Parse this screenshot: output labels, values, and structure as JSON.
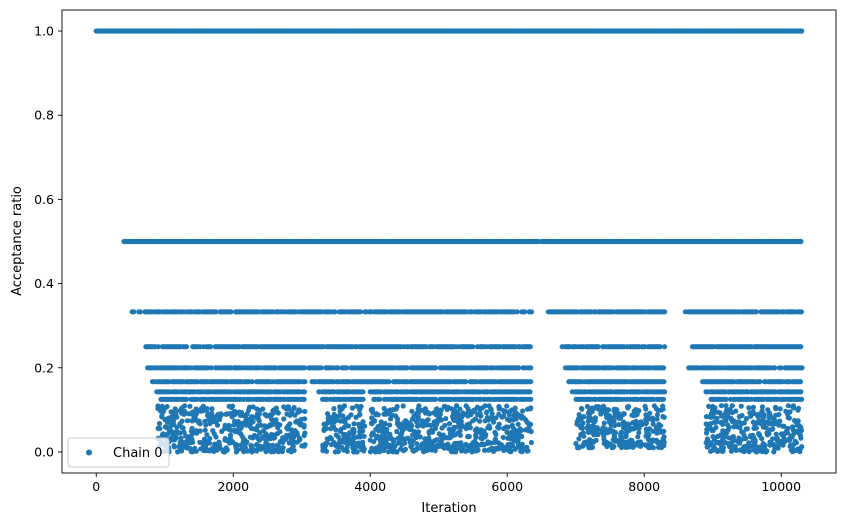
{
  "chart_data": {
    "type": "scatter",
    "title": "",
    "xlabel": "Iteration",
    "ylabel": "Acceptance ratio",
    "xlim": [
      -500,
      10800
    ],
    "ylim": [
      -0.05,
      1.05
    ],
    "xticks": [
      0,
      2000,
      4000,
      6000,
      8000,
      10000
    ],
    "yticks": [
      0.0,
      0.2,
      0.4,
      0.6,
      0.8,
      1.0
    ],
    "xtick_labels": [
      "0",
      "2000",
      "4000",
      "6000",
      "8000",
      "10000"
    ],
    "ytick_labels": [
      "0.0",
      "0.2",
      "0.4",
      "0.6",
      "0.8",
      "1.0"
    ],
    "grid": false,
    "legend": {
      "position": "lower-left",
      "entries": [
        "Chain 0"
      ]
    },
    "series": [
      {
        "name": "Chain 0",
        "color": "#1f77b4",
        "marker": "circle",
        "levels": [
          {
            "y": 1.0,
            "x_ranges": [
              [
                0,
                10300
              ]
            ]
          },
          {
            "y": 0.5,
            "x_ranges": [
              [
                400,
                6450
              ],
              [
                6500,
                10300
              ]
            ]
          },
          {
            "y": 0.333,
            "x_ranges": [
              [
                520,
                560
              ],
              [
                620,
                6350
              ],
              [
                6350,
                6370
              ],
              [
                6600,
                8300
              ],
              [
                8600,
                10300
              ]
            ]
          },
          {
            "y": 0.25,
            "x_ranges": [
              [
                700,
                6350
              ],
              [
                6800,
                8300
              ],
              [
                8700,
                10300
              ]
            ]
          },
          {
            "y": 0.2,
            "x_ranges": [
              [
                750,
                6350
              ],
              [
                6850,
                8300
              ],
              [
                8650,
                10300
              ]
            ]
          },
          {
            "y": 0.167,
            "x_ranges": [
              [
                820,
                3050
              ],
              [
                3150,
                6350
              ],
              [
                6900,
                8300
              ],
              [
                8850,
                10300
              ]
            ]
          },
          {
            "y": 0.143,
            "x_ranges": [
              [
                880,
                3050
              ],
              [
                3250,
                3900
              ],
              [
                4000,
                6350
              ],
              [
                6950,
                8300
              ],
              [
                8900,
                10300
              ]
            ]
          },
          {
            "y": 0.125,
            "x_ranges": [
              [
                940,
                3050
              ],
              [
                3300,
                3900
              ],
              [
                4050,
                6350
              ],
              [
                7000,
                8300
              ],
              [
                8950,
                10300
              ]
            ]
          }
        ],
        "clusters": [
          {
            "x_range": [
              900,
              3060
            ],
            "y_range": [
              0.0,
              0.11
            ]
          },
          {
            "x_range": [
              3300,
              3920
            ],
            "y_range": [
              0.0,
              0.11
            ]
          },
          {
            "x_range": [
              4000,
              6360
            ],
            "y_range": [
              0.0,
              0.11
            ]
          },
          {
            "x_range": [
              7000,
              8300
            ],
            "y_range": [
              0.01,
              0.11
            ]
          },
          {
            "x_range": [
              8900,
              10300
            ],
            "y_range": [
              0.0,
              0.11
            ]
          }
        ]
      }
    ]
  }
}
